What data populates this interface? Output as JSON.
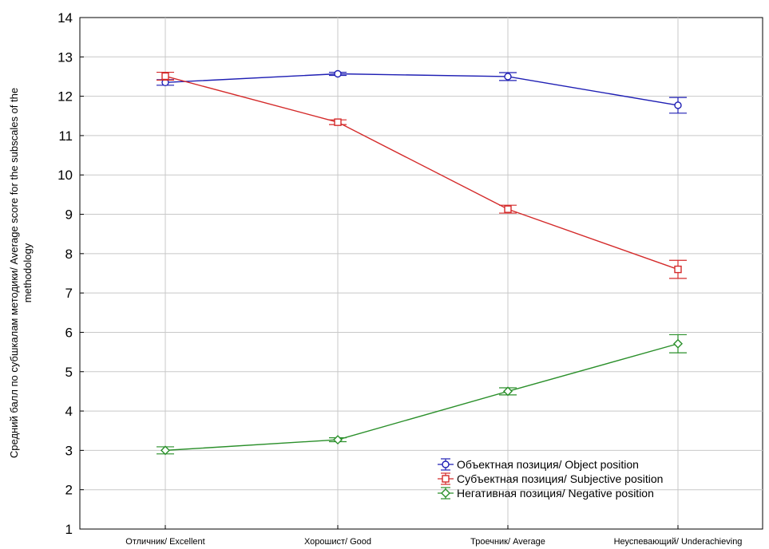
{
  "chart_data": {
    "type": "line",
    "title": "",
    "xlabel": "",
    "ylabel": "Средний балл по субшкалам методики/ Average score for the subscales of the methodology",
    "ylabel_lines": [
      "Средний балл по субшкалам методики/ Average score for the subscales of the",
      "methodology"
    ],
    "ylim": [
      1,
      14
    ],
    "yticks": [
      "1",
      "2",
      "3",
      "4",
      "5",
      "6",
      "7",
      "8",
      "9",
      "10",
      "11",
      "12",
      "13",
      "14"
    ],
    "categories": [
      "Отличник/ Excellent",
      "Хорошист/ Good",
      "Троечник/ Average",
      "Неуспевающий/ Underachieving"
    ],
    "grid": true,
    "legend_position": "bottom-right",
    "series": [
      {
        "name": "Объектная позиция/ Object position",
        "color": "#1f1fb4",
        "marker": "circle",
        "values": [
          12.35,
          12.57,
          12.5,
          11.77
        ],
        "errors": [
          0.07,
          0.04,
          0.1,
          0.2
        ]
      },
      {
        "name": "Субъектная позиция/ Subjective position",
        "color": "#d42a2a",
        "marker": "square",
        "values": [
          12.51,
          11.34,
          9.13,
          7.6
        ],
        "errors": [
          0.1,
          0.06,
          0.1,
          0.23
        ]
      },
      {
        "name": "Негативная позиция/ Negative position",
        "color": "#2a8f2a",
        "marker": "diamond",
        "values": [
          3.0,
          3.27,
          4.5,
          5.71
        ],
        "errors": [
          0.09,
          0.05,
          0.09,
          0.23
        ]
      }
    ]
  }
}
